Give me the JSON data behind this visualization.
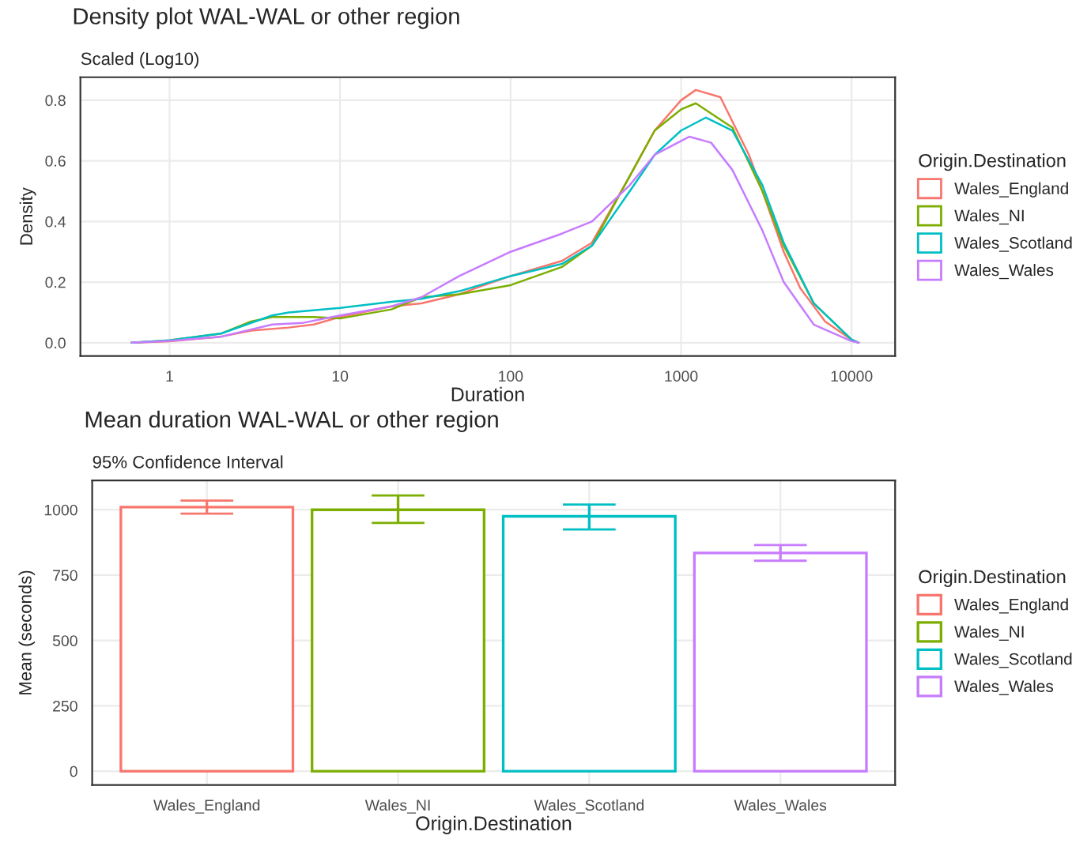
{
  "chart_data": [
    {
      "type": "line",
      "title": "Density plot WAL-WAL or other region",
      "subtitle": "Scaled (Log10)",
      "xlabel": "Duration",
      "ylabel": "Density",
      "legend_title": "Origin.Destination",
      "log": "x",
      "grid": true,
      "legend": "right",
      "xlim": [
        0.3,
        18000
      ],
      "xticks": [
        1,
        10,
        100,
        1000,
        10000
      ],
      "ylim": [
        -0.044,
        0.876
      ],
      "yticks": [
        {
          "value": 0,
          "label": "0.0"
        },
        0.2,
        0.4,
        0.6,
        0.8
      ],
      "series": [
        {
          "name": "Wales_England",
          "color": "#f8766d",
          "x": [
            0.6,
            1,
            2,
            3,
            5,
            7,
            10,
            20,
            30,
            50,
            70,
            100,
            200,
            300,
            500,
            700,
            1000,
            1220,
            1700,
            2500,
            3000,
            4000,
            5000,
            7000,
            10000,
            11000
          ],
          "values": [
            0,
            0.005,
            0.02,
            0.04,
            0.05,
            0.06,
            0.085,
            0.12,
            0.13,
            0.16,
            0.19,
            0.22,
            0.27,
            0.33,
            0.55,
            0.7,
            0.8,
            0.834,
            0.81,
            0.62,
            0.5,
            0.3,
            0.18,
            0.07,
            0.01,
            0
          ]
        },
        {
          "name": "Wales_NI",
          "color": "#7cae00",
          "x": [
            0.6,
            1,
            2,
            3,
            4,
            7,
            10,
            20,
            30,
            50,
            100,
            200,
            300,
            500,
            700,
            1000,
            1220,
            2000,
            3000,
            4000,
            6000,
            10000,
            11000
          ],
          "values": [
            0,
            0.008,
            0.03,
            0.07,
            0.085,
            0.085,
            0.08,
            0.11,
            0.15,
            0.16,
            0.19,
            0.25,
            0.32,
            0.55,
            0.7,
            0.77,
            0.79,
            0.71,
            0.5,
            0.32,
            0.13,
            0.01,
            0
          ]
        },
        {
          "name": "Wales_Scotland",
          "color": "#00bfc4",
          "x": [
            0.6,
            1,
            2,
            4,
            5,
            10,
            20,
            30,
            50,
            100,
            200,
            300,
            500,
            700,
            1000,
            1400,
            2000,
            3000,
            4000,
            6000,
            10000,
            11000
          ],
          "values": [
            0,
            0.008,
            0.03,
            0.09,
            0.1,
            0.115,
            0.135,
            0.145,
            0.17,
            0.22,
            0.26,
            0.32,
            0.5,
            0.62,
            0.7,
            0.743,
            0.7,
            0.52,
            0.33,
            0.13,
            0.01,
            0
          ]
        },
        {
          "name": "Wales_Wales",
          "color": "#c77cff",
          "x": [
            0.6,
            1,
            2,
            4,
            6,
            10,
            20,
            30,
            50,
            100,
            200,
            300,
            500,
            700,
            1120,
            1500,
            2000,
            3000,
            4000,
            6000,
            10000,
            11000
          ],
          "values": [
            0,
            0.006,
            0.02,
            0.06,
            0.065,
            0.09,
            0.12,
            0.15,
            0.22,
            0.3,
            0.36,
            0.4,
            0.52,
            0.62,
            0.68,
            0.66,
            0.57,
            0.37,
            0.2,
            0.06,
            0.005,
            0
          ]
        }
      ]
    },
    {
      "type": "bar",
      "title": "Mean duration WAL-WAL or other region",
      "subtitle": "95% Confidence Interval",
      "xlabel": "Origin.Destination",
      "ylabel": "Mean (seconds)",
      "legend_title": "Origin.Destination",
      "grid": true,
      "legend": "right",
      "categories": [
        "Wales_England",
        "Wales_NI",
        "Wales_Scotland",
        "Wales_Wales"
      ],
      "series": [
        {
          "name": "Wales_England",
          "color": "#f8766d",
          "values": [
            1010,
            null,
            null,
            null
          ],
          "errors": [
            [
              985,
              1035
            ],
            null,
            null,
            null
          ]
        },
        {
          "name": "Wales_NI",
          "color": "#7cae00",
          "values": [
            null,
            1000,
            null,
            null
          ],
          "errors": [
            null,
            [
              950,
              1055
            ],
            null,
            null
          ]
        },
        {
          "name": "Wales_Scotland",
          "color": "#00bfc4",
          "values": [
            null,
            null,
            975,
            null
          ],
          "errors": [
            null,
            null,
            [
              925,
              1020
            ],
            null
          ]
        },
        {
          "name": "Wales_Wales",
          "color": "#c77cff",
          "values": [
            null,
            null,
            null,
            835
          ],
          "errors": [
            null,
            null,
            null,
            [
              805,
              865
            ]
          ]
        }
      ],
      "ylim": [
        -53,
        1112
      ],
      "yticks": [
        0,
        250,
        500,
        750,
        1000
      ]
    }
  ]
}
